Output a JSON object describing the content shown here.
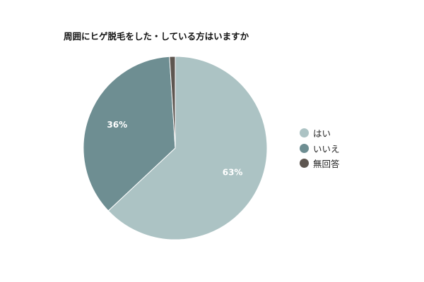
{
  "chart_data": {
    "type": "pie",
    "title": "周囲にヒゲ脱毛をした・している方はいますか",
    "slices": [
      {
        "label": "はい",
        "value": 63,
        "display": "63%",
        "color": "#acc3c4"
      },
      {
        "label": "いいえ",
        "value": 36,
        "display": "36%",
        "color": "#6e8e92"
      },
      {
        "label": "無回答",
        "value": 1,
        "display": "",
        "color": "#5e5650"
      }
    ],
    "legend_position": "right"
  }
}
